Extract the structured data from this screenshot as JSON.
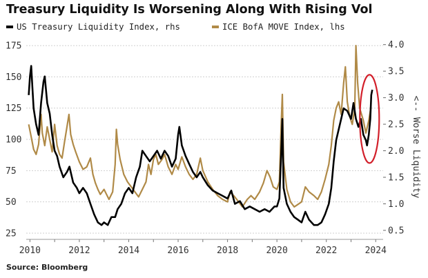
{
  "chart_data": {
    "type": "line",
    "title": "Treasury Liquidity Is Worsening Along With Rising Vol",
    "xlabel": "",
    "ylabel_left": "",
    "ylabel_right": "<-- Worse Liquidity",
    "x_ticks": [
      "2010",
      "2012",
      "2014",
      "2016",
      "2018",
      "2020",
      "2022",
      "2024"
    ],
    "xlim": [
      2009.85,
      2024.3
    ],
    "ylim_left": [
      20,
      180
    ],
    "yticks_left": [
      "25",
      "50",
      "75",
      "100",
      "125",
      "150",
      "175"
    ],
    "ylim_right": [
      0.33,
      4.1
    ],
    "yticks_right": [
      "0.5",
      "1.0",
      "1.5",
      "2.0",
      "2.5",
      "3.0",
      "3.5",
      "4.0"
    ],
    "grid": "horizontal dashed",
    "legend_placement": "top-left",
    "annotation": "red ellipse around late-2023 spike in US Treasury Liquidity Index",
    "series": [
      {
        "name": "US Treasury Liquidity Index, rhs",
        "axis": "right",
        "color": "#000000",
        "points": [
          [
            2009.95,
            3.05
          ],
          [
            2010.0,
            3.4
          ],
          [
            2010.05,
            3.6
          ],
          [
            2010.1,
            3.2
          ],
          [
            2010.15,
            2.8
          ],
          [
            2010.25,
            2.5
          ],
          [
            2010.35,
            2.3
          ],
          [
            2010.45,
            2.9
          ],
          [
            2010.55,
            3.3
          ],
          [
            2010.6,
            3.4
          ],
          [
            2010.7,
            2.9
          ],
          [
            2010.8,
            2.7
          ],
          [
            2010.9,
            2.3
          ],
          [
            2011.0,
            2.0
          ],
          [
            2011.1,
            1.9
          ],
          [
            2011.2,
            1.7
          ],
          [
            2011.35,
            1.5
          ],
          [
            2011.5,
            1.6
          ],
          [
            2011.6,
            1.7
          ],
          [
            2011.75,
            1.4
          ],
          [
            2011.9,
            1.3
          ],
          [
            2012.0,
            1.2
          ],
          [
            2012.15,
            1.3
          ],
          [
            2012.3,
            1.2
          ],
          [
            2012.45,
            1.0
          ],
          [
            2012.6,
            0.8
          ],
          [
            2012.75,
            0.65
          ],
          [
            2012.9,
            0.6
          ],
          [
            2013.0,
            0.65
          ],
          [
            2013.15,
            0.6
          ],
          [
            2013.3,
            0.75
          ],
          [
            2013.45,
            0.75
          ],
          [
            2013.55,
            0.9
          ],
          [
            2013.7,
            1.0
          ],
          [
            2013.85,
            1.2
          ],
          [
            2014.0,
            1.3
          ],
          [
            2014.15,
            1.2
          ],
          [
            2014.3,
            1.5
          ],
          [
            2014.45,
            1.7
          ],
          [
            2014.55,
            2.0
          ],
          [
            2014.7,
            1.9
          ],
          [
            2014.85,
            1.8
          ],
          [
            2015.0,
            1.9
          ],
          [
            2015.15,
            2.0
          ],
          [
            2015.3,
            1.85
          ],
          [
            2015.45,
            2.0
          ],
          [
            2015.6,
            1.9
          ],
          [
            2015.75,
            1.7
          ],
          [
            2015.9,
            1.85
          ],
          [
            2016.0,
            2.3
          ],
          [
            2016.05,
            2.45
          ],
          [
            2016.15,
            2.1
          ],
          [
            2016.3,
            1.9
          ],
          [
            2016.45,
            1.75
          ],
          [
            2016.6,
            1.6
          ],
          [
            2016.75,
            1.5
          ],
          [
            2016.9,
            1.6
          ],
          [
            2017.0,
            1.5
          ],
          [
            2017.2,
            1.35
          ],
          [
            2017.4,
            1.25
          ],
          [
            2017.6,
            1.2
          ],
          [
            2017.8,
            1.15
          ],
          [
            2018.0,
            1.1
          ],
          [
            2018.15,
            1.25
          ],
          [
            2018.3,
            1.0
          ],
          [
            2018.5,
            1.05
          ],
          [
            2018.7,
            0.9
          ],
          [
            2018.9,
            0.95
          ],
          [
            2019.1,
            0.9
          ],
          [
            2019.3,
            0.85
          ],
          [
            2019.5,
            0.9
          ],
          [
            2019.7,
            0.85
          ],
          [
            2019.9,
            0.95
          ],
          [
            2020.0,
            0.95
          ],
          [
            2020.1,
            1.1
          ],
          [
            2020.17,
            1.9
          ],
          [
            2020.22,
            2.6
          ],
          [
            2020.27,
            1.3
          ],
          [
            2020.4,
            1.0
          ],
          [
            2020.55,
            0.85
          ],
          [
            2020.7,
            0.75
          ],
          [
            2020.85,
            0.7
          ],
          [
            2021.0,
            0.65
          ],
          [
            2021.15,
            0.85
          ],
          [
            2021.3,
            0.7
          ],
          [
            2021.5,
            0.6
          ],
          [
            2021.65,
            0.6
          ],
          [
            2021.8,
            0.65
          ],
          [
            2021.95,
            0.8
          ],
          [
            2022.1,
            1.0
          ],
          [
            2022.2,
            1.3
          ],
          [
            2022.3,
            1.8
          ],
          [
            2022.4,
            2.2
          ],
          [
            2022.5,
            2.4
          ],
          [
            2022.6,
            2.6
          ],
          [
            2022.7,
            2.8
          ],
          [
            2022.85,
            2.75
          ],
          [
            2023.0,
            2.6
          ],
          [
            2023.1,
            2.9
          ],
          [
            2023.2,
            2.6
          ],
          [
            2023.3,
            2.45
          ],
          [
            2023.4,
            2.6
          ],
          [
            2023.5,
            2.3
          ],
          [
            2023.6,
            2.2
          ],
          [
            2023.65,
            2.1
          ],
          [
            2023.72,
            2.3
          ],
          [
            2023.78,
            2.6
          ],
          [
            2023.82,
            3.05
          ],
          [
            2023.86,
            3.15
          ]
        ]
      },
      {
        "name": "ICE BofA MOVE Index, lhs",
        "axis": "left",
        "color": "#b08a47",
        "points": [
          [
            2009.95,
            112
          ],
          [
            2010.05,
            102
          ],
          [
            2010.15,
            92
          ],
          [
            2010.25,
            88
          ],
          [
            2010.35,
            96
          ],
          [
            2010.45,
            120
          ],
          [
            2010.5,
            105
          ],
          [
            2010.6,
            95
          ],
          [
            2010.7,
            110
          ],
          [
            2010.8,
            100
          ],
          [
            2010.9,
            90
          ],
          [
            2011.0,
            112
          ],
          [
            2011.1,
            95
          ],
          [
            2011.2,
            88
          ],
          [
            2011.3,
            85
          ],
          [
            2011.4,
            98
          ],
          [
            2011.5,
            110
          ],
          [
            2011.58,
            120
          ],
          [
            2011.65,
            104
          ],
          [
            2011.75,
            96
          ],
          [
            2011.85,
            90
          ],
          [
            2012.0,
            82
          ],
          [
            2012.15,
            76
          ],
          [
            2012.3,
            78
          ],
          [
            2012.45,
            85
          ],
          [
            2012.55,
            72
          ],
          [
            2012.65,
            65
          ],
          [
            2012.75,
            60
          ],
          [
            2012.85,
            56
          ],
          [
            2013.0,
            60
          ],
          [
            2013.1,
            56
          ],
          [
            2013.2,
            52
          ],
          [
            2013.35,
            58
          ],
          [
            2013.45,
            80
          ],
          [
            2013.5,
            108
          ],
          [
            2013.55,
            96
          ],
          [
            2013.65,
            84
          ],
          [
            2013.8,
            72
          ],
          [
            2013.95,
            66
          ],
          [
            2014.1,
            62
          ],
          [
            2014.25,
            58
          ],
          [
            2014.4,
            54
          ],
          [
            2014.55,
            60
          ],
          [
            2014.7,
            66
          ],
          [
            2014.8,
            80
          ],
          [
            2014.9,
            72
          ],
          [
            2015.0,
            84
          ],
          [
            2015.1,
            88
          ],
          [
            2015.2,
            80
          ],
          [
            2015.35,
            84
          ],
          [
            2015.45,
            88
          ],
          [
            2015.6,
            78
          ],
          [
            2015.75,
            72
          ],
          [
            2015.9,
            80
          ],
          [
            2016.0,
            76
          ],
          [
            2016.15,
            86
          ],
          [
            2016.3,
            78
          ],
          [
            2016.45,
            72
          ],
          [
            2016.6,
            68
          ],
          [
            2016.75,
            72
          ],
          [
            2016.9,
            85
          ],
          [
            2017.0,
            75
          ],
          [
            2017.2,
            66
          ],
          [
            2017.4,
            60
          ],
          [
            2017.6,
            55
          ],
          [
            2017.8,
            52
          ],
          [
            2018.0,
            50
          ],
          [
            2018.1,
            58
          ],
          [
            2018.25,
            55
          ],
          [
            2018.45,
            50
          ],
          [
            2018.6,
            46
          ],
          [
            2018.8,
            52
          ],
          [
            2018.95,
            55
          ],
          [
            2019.1,
            52
          ],
          [
            2019.3,
            58
          ],
          [
            2019.45,
            65
          ],
          [
            2019.6,
            75
          ],
          [
            2019.72,
            70
          ],
          [
            2019.85,
            62
          ],
          [
            2020.0,
            60
          ],
          [
            2020.1,
            66
          ],
          [
            2020.17,
            110
          ],
          [
            2020.22,
            136
          ],
          [
            2020.27,
            82
          ],
          [
            2020.4,
            60
          ],
          [
            2020.55,
            50
          ],
          [
            2020.7,
            46
          ],
          [
            2020.85,
            48
          ],
          [
            2021.0,
            50
          ],
          [
            2021.15,
            62
          ],
          [
            2021.3,
            58
          ],
          [
            2021.5,
            55
          ],
          [
            2021.65,
            52
          ],
          [
            2021.8,
            58
          ],
          [
            2021.95,
            68
          ],
          [
            2022.1,
            80
          ],
          [
            2022.2,
            95
          ],
          [
            2022.3,
            115
          ],
          [
            2022.4,
            125
          ],
          [
            2022.5,
            130
          ],
          [
            2022.6,
            120
          ],
          [
            2022.7,
            145
          ],
          [
            2022.77,
            158
          ],
          [
            2022.85,
            130
          ],
          [
            2022.95,
            118
          ],
          [
            2023.05,
            112
          ],
          [
            2023.15,
            125
          ],
          [
            2023.2,
            175
          ],
          [
            2023.27,
            145
          ],
          [
            2023.35,
            125
          ],
          [
            2023.5,
            115
          ],
          [
            2023.6,
            105
          ],
          [
            2023.72,
            115
          ],
          [
            2023.8,
            125
          ]
        ]
      }
    ]
  },
  "legend": {
    "items": [
      {
        "label": "US Treasury Liquidity Index, rhs",
        "color": "#000000"
      },
      {
        "label": "ICE BofA MOVE Index, lhs",
        "color": "#b08a47"
      }
    ]
  },
  "source": "Source: Bloomberg",
  "colors": {
    "highlight": "#d21f2a",
    "grid": "#cfcfcf",
    "text": "#333333"
  }
}
